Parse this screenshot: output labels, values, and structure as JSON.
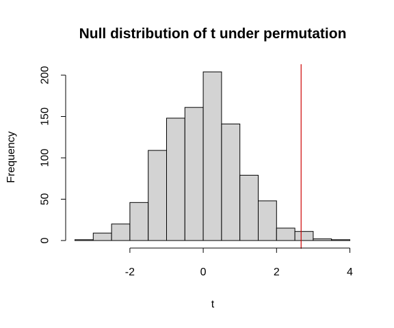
{
  "chart_data": {
    "type": "bar",
    "title": "Null distribution of t under permutation",
    "xlabel": "t",
    "ylabel": "Frequency",
    "bin_edges": [
      -3.5,
      -3.0,
      -2.5,
      -2.0,
      -1.5,
      -1.0,
      -0.5,
      0.0,
      0.5,
      1.0,
      1.5,
      2.0,
      2.5,
      3.0,
      3.5,
      4.0
    ],
    "counts": [
      1,
      9,
      20,
      46,
      109,
      148,
      161,
      204,
      141,
      79,
      48,
      15,
      11,
      2,
      1
    ],
    "xlim": [
      -3.5,
      4.0
    ],
    "ylim": [
      0,
      200
    ],
    "x_ticks": [
      -2,
      0,
      2,
      4
    ],
    "y_ticks": [
      0,
      50,
      100,
      150,
      200
    ],
    "observed_t": 2.67,
    "bar_fill": "#d3d3d3",
    "bar_stroke": "#000000",
    "observed_line_color": "#cc0000",
    "grid": false,
    "legend": "none"
  }
}
